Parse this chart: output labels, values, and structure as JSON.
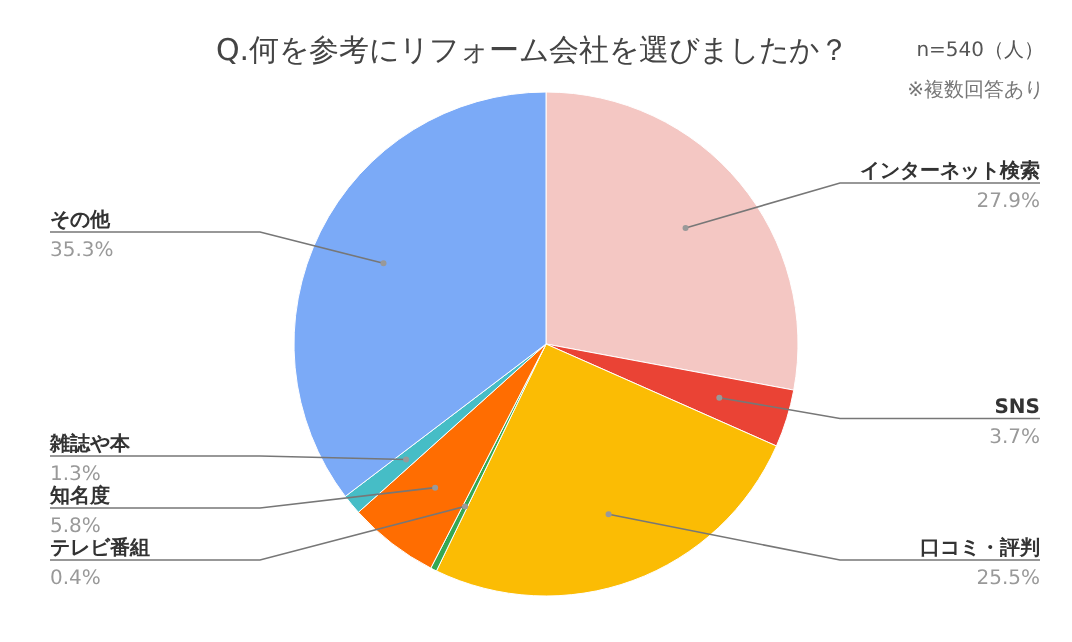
{
  "chart_data": {
    "type": "pie",
    "title": "Q.何を参考にリフォーム会社を選びましたか？",
    "subtitle": "n=540（人）",
    "annotations": [
      "※複数回答あり"
    ],
    "categories": [
      "インターネット検索",
      "SNS",
      "口コミ・評判",
      "テレビ番組",
      "知名度",
      "雑誌や本",
      "その他"
    ],
    "values": [
      27.9,
      3.7,
      25.5,
      0.4,
      5.8,
      1.3,
      35.3
    ],
    "value_labels": [
      "27.9%",
      "3.7%",
      "25.5%",
      "0.4%",
      "5.8%",
      "1.3%",
      "35.3%"
    ],
    "colors": [
      "#f4c7c3",
      "#ea4335",
      "#fbbc04",
      "#34a853",
      "#ff6d01",
      "#46bdc6",
      "#7baaf7"
    ]
  }
}
